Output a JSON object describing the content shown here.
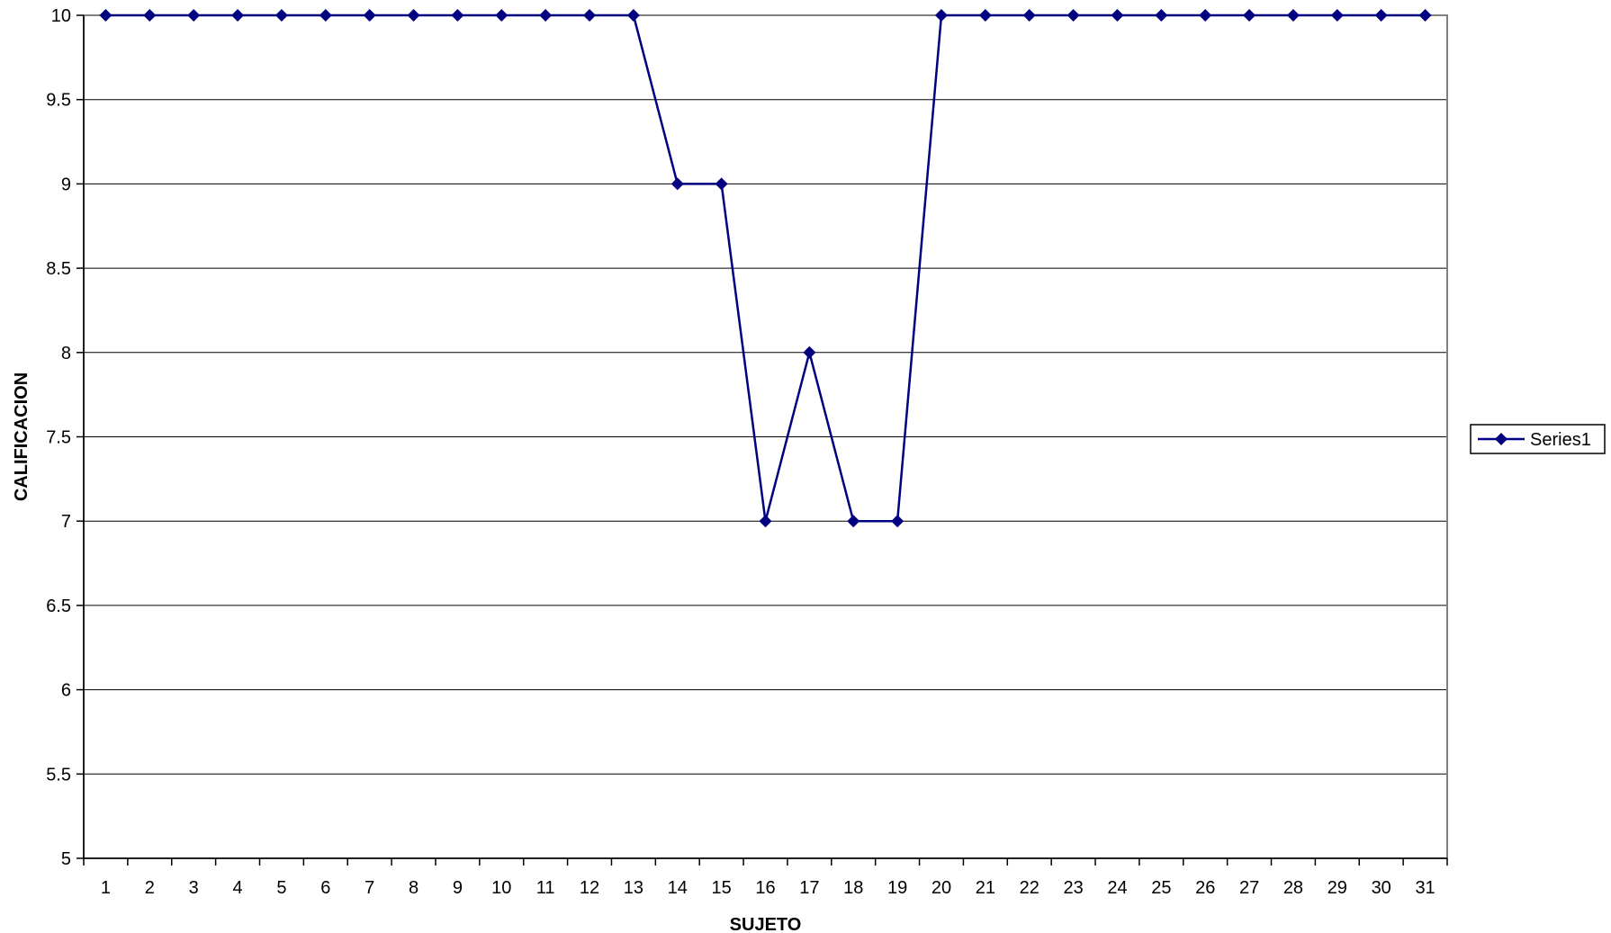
{
  "chart_data": {
    "type": "line",
    "title": "",
    "xlabel": "SUJETO",
    "ylabel": "CALIFICACION",
    "categories": [
      "1",
      "2",
      "3",
      "4",
      "5",
      "6",
      "7",
      "8",
      "9",
      "10",
      "11",
      "12",
      "13",
      "14",
      "15",
      "16",
      "17",
      "18",
      "19",
      "20",
      "21",
      "22",
      "23",
      "24",
      "25",
      "26",
      "27",
      "28",
      "29",
      "30",
      "31"
    ],
    "series": [
      {
        "name": "Series1",
        "color": "#000080",
        "marker": "diamond",
        "values": [
          10,
          10,
          10,
          10,
          10,
          10,
          10,
          10,
          10,
          10,
          10,
          10,
          10,
          9,
          9,
          7,
          8,
          7,
          7,
          10,
          10,
          10,
          10,
          10,
          10,
          10,
          10,
          10,
          10,
          10,
          10
        ]
      }
    ],
    "ylim": [
      5,
      10
    ],
    "yticks": [
      "5",
      "5.5",
      "6",
      "6.5",
      "7",
      "7.5",
      "8",
      "8.5",
      "9",
      "9.5",
      "10"
    ],
    "grid": true,
    "legend": "right"
  }
}
